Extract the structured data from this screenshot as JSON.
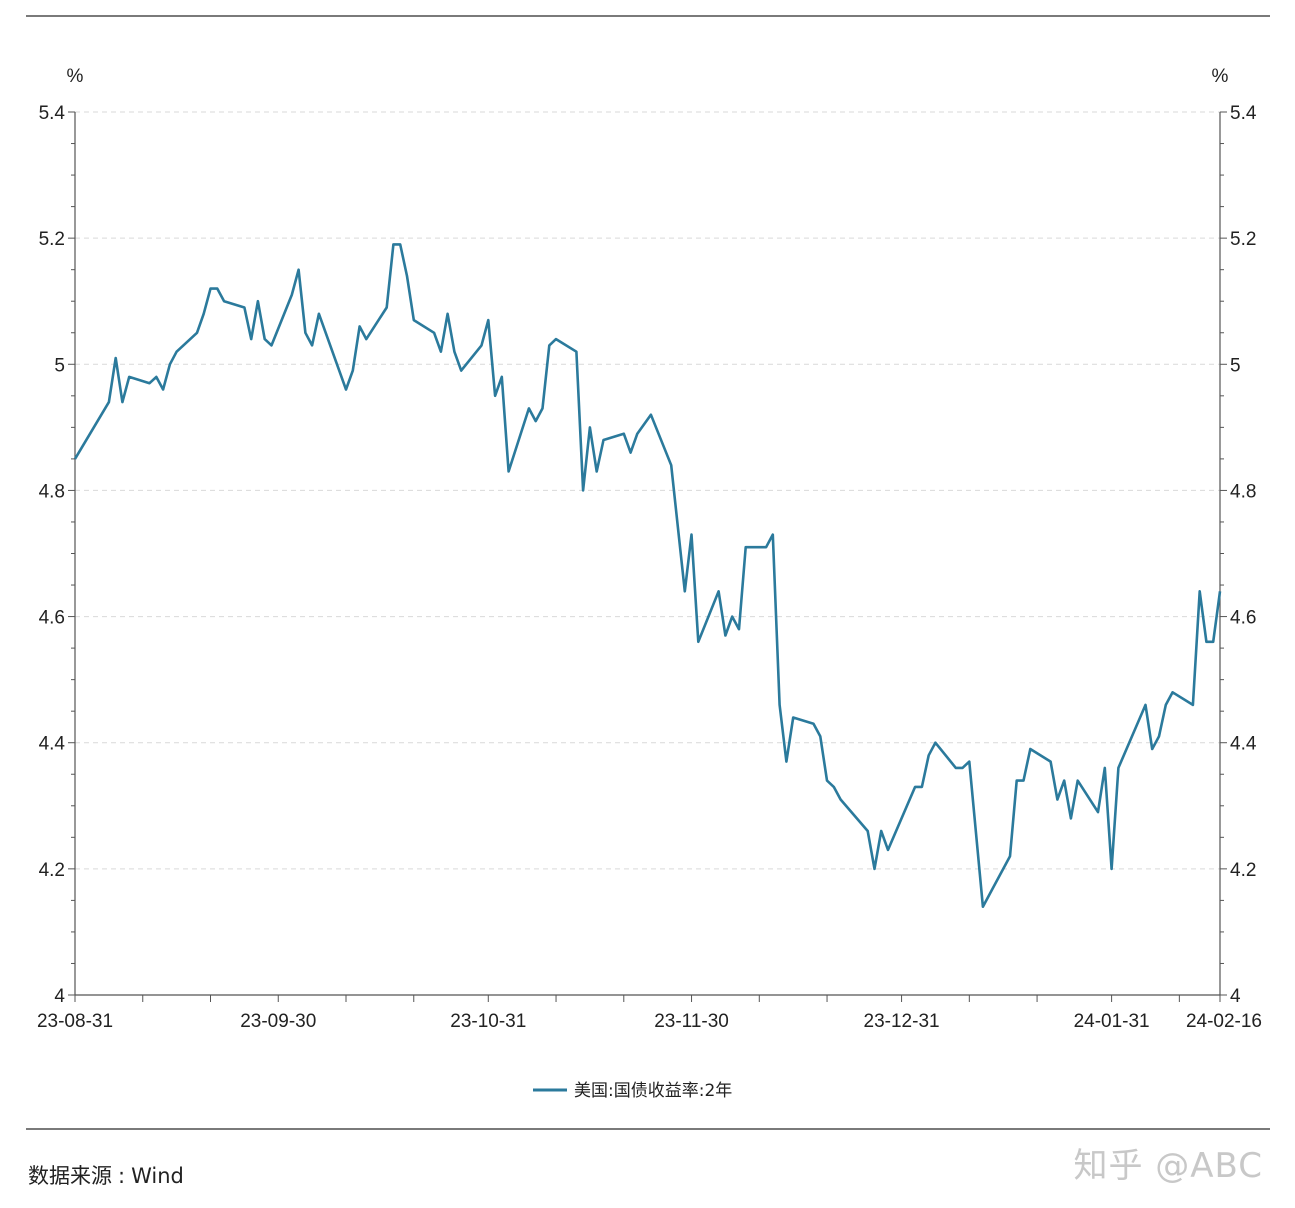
{
  "source": {
    "label": "数据来源",
    "separator": ":",
    "value": "Wind"
  },
  "watermark": "知乎 @ABC",
  "colors": {
    "line": "#2b7a9c",
    "grid": "#d9d9d9",
    "axis": "#555555"
  },
  "chart_data": {
    "type": "line",
    "title": "",
    "left_unit": "%",
    "right_unit": "%",
    "ylim": [
      4,
      5.4
    ],
    "yticks": [
      4,
      4.2,
      4.4,
      4.6,
      4.8,
      5,
      5.2,
      5.4
    ],
    "ytick_labels": [
      "4",
      "4.2",
      "4.4",
      "4.6",
      "4.8",
      "5",
      "5.2",
      "5.4"
    ],
    "xlim": [
      "2023-08-31",
      "2024-02-16"
    ],
    "x_minor_ticks": [
      "2023-08-31",
      "2023-09-10",
      "2023-09-20",
      "2023-09-30",
      "2023-10-10",
      "2023-10-20",
      "2023-10-31",
      "2023-11-10",
      "2023-11-20",
      "2023-11-30",
      "2023-12-10",
      "2023-12-20",
      "2023-12-31",
      "2024-01-10",
      "2024-01-20",
      "2024-01-31",
      "2024-02-10",
      "2024-02-16"
    ],
    "xtick_labels": [
      {
        "date": "2023-08-31",
        "label": "23-08-31"
      },
      {
        "date": "2023-09-30",
        "label": "23-09-30"
      },
      {
        "date": "2023-10-31",
        "label": "23-10-31"
      },
      {
        "date": "2023-11-30",
        "label": "23-11-30"
      },
      {
        "date": "2023-12-31",
        "label": "23-12-31"
      },
      {
        "date": "2024-01-31",
        "label": "24-01-31"
      },
      {
        "date": "2024-02-16",
        "label": "24-02-16"
      }
    ],
    "grid": "horizontal dashed",
    "legend_position": "bottom-center",
    "series": [
      {
        "name": "美国:国债收益率:2年",
        "points": [
          [
            "2023-08-31",
            4.85
          ],
          [
            "2023-09-05",
            4.94
          ],
          [
            "2023-09-06",
            5.01
          ],
          [
            "2023-09-07",
            4.94
          ],
          [
            "2023-09-08",
            4.98
          ],
          [
            "2023-09-11",
            4.97
          ],
          [
            "2023-09-12",
            4.98
          ],
          [
            "2023-09-13",
            4.96
          ],
          [
            "2023-09-14",
            5.0
          ],
          [
            "2023-09-15",
            5.02
          ],
          [
            "2023-09-18",
            5.05
          ],
          [
            "2023-09-19",
            5.08
          ],
          [
            "2023-09-20",
            5.12
          ],
          [
            "2023-09-21",
            5.12
          ],
          [
            "2023-09-22",
            5.1
          ],
          [
            "2023-09-25",
            5.09
          ],
          [
            "2023-09-26",
            5.04
          ],
          [
            "2023-09-27",
            5.1
          ],
          [
            "2023-09-28",
            5.04
          ],
          [
            "2023-09-29",
            5.03
          ],
          [
            "2023-10-02",
            5.11
          ],
          [
            "2023-10-03",
            5.15
          ],
          [
            "2023-10-04",
            5.05
          ],
          [
            "2023-10-05",
            5.03
          ],
          [
            "2023-10-06",
            5.08
          ],
          [
            "2023-10-10",
            4.96
          ],
          [
            "2023-10-11",
            4.99
          ],
          [
            "2023-10-12",
            5.06
          ],
          [
            "2023-10-13",
            5.04
          ],
          [
            "2023-10-16",
            5.09
          ],
          [
            "2023-10-17",
            5.19
          ],
          [
            "2023-10-18",
            5.19
          ],
          [
            "2023-10-19",
            5.14
          ],
          [
            "2023-10-20",
            5.07
          ],
          [
            "2023-10-23",
            5.05
          ],
          [
            "2023-10-24",
            5.02
          ],
          [
            "2023-10-25",
            5.08
          ],
          [
            "2023-10-26",
            5.02
          ],
          [
            "2023-10-27",
            4.99
          ],
          [
            "2023-10-30",
            5.03
          ],
          [
            "2023-10-31",
            5.07
          ],
          [
            "2023-11-01",
            4.95
          ],
          [
            "2023-11-02",
            4.98
          ],
          [
            "2023-11-03",
            4.83
          ],
          [
            "2023-11-06",
            4.93
          ],
          [
            "2023-11-07",
            4.91
          ],
          [
            "2023-11-08",
            4.93
          ],
          [
            "2023-11-09",
            5.03
          ],
          [
            "2023-11-10",
            5.04
          ],
          [
            "2023-11-13",
            5.02
          ],
          [
            "2023-11-14",
            4.8
          ],
          [
            "2023-11-15",
            4.9
          ],
          [
            "2023-11-16",
            4.83
          ],
          [
            "2023-11-17",
            4.88
          ],
          [
            "2023-11-20",
            4.89
          ],
          [
            "2023-11-21",
            4.86
          ],
          [
            "2023-11-22",
            4.89
          ],
          [
            "2023-11-24",
            4.92
          ],
          [
            "2023-11-27",
            4.84
          ],
          [
            "2023-11-28",
            4.74
          ],
          [
            "2023-11-29",
            4.64
          ],
          [
            "2023-11-30",
            4.73
          ],
          [
            "2023-12-01",
            4.56
          ],
          [
            "2023-12-04",
            4.64
          ],
          [
            "2023-12-05",
            4.57
          ],
          [
            "2023-12-06",
            4.6
          ],
          [
            "2023-12-07",
            4.58
          ],
          [
            "2023-12-08",
            4.71
          ],
          [
            "2023-12-11",
            4.71
          ],
          [
            "2023-12-12",
            4.73
          ],
          [
            "2023-12-13",
            4.46
          ],
          [
            "2023-12-14",
            4.37
          ],
          [
            "2023-12-15",
            4.44
          ],
          [
            "2023-12-18",
            4.43
          ],
          [
            "2023-12-19",
            4.41
          ],
          [
            "2023-12-20",
            4.34
          ],
          [
            "2023-12-21",
            4.33
          ],
          [
            "2023-12-22",
            4.31
          ],
          [
            "2023-12-26",
            4.26
          ],
          [
            "2023-12-27",
            4.2
          ],
          [
            "2023-12-28",
            4.26
          ],
          [
            "2023-12-29",
            4.23
          ],
          [
            "2024-01-02",
            4.33
          ],
          [
            "2024-01-03",
            4.33
          ],
          [
            "2024-01-04",
            4.38
          ],
          [
            "2024-01-05",
            4.4
          ],
          [
            "2024-01-08",
            4.36
          ],
          [
            "2024-01-09",
            4.36
          ],
          [
            "2024-01-10",
            4.37
          ],
          [
            "2024-01-12",
            4.14
          ],
          [
            "2024-01-16",
            4.22
          ],
          [
            "2024-01-17",
            4.34
          ],
          [
            "2024-01-18",
            4.34
          ],
          [
            "2024-01-19",
            4.39
          ],
          [
            "2024-01-22",
            4.37
          ],
          [
            "2024-01-23",
            4.31
          ],
          [
            "2024-01-24",
            4.34
          ],
          [
            "2024-01-25",
            4.28
          ],
          [
            "2024-01-26",
            4.34
          ],
          [
            "2024-01-29",
            4.29
          ],
          [
            "2024-01-30",
            4.36
          ],
          [
            "2024-01-31",
            4.2
          ],
          [
            "2024-02-01",
            4.36
          ],
          [
            "2024-02-05",
            4.46
          ],
          [
            "2024-02-06",
            4.39
          ],
          [
            "2024-02-07",
            4.41
          ],
          [
            "2024-02-08",
            4.46
          ],
          [
            "2024-02-09",
            4.48
          ],
          [
            "2024-02-12",
            4.46
          ],
          [
            "2024-02-13",
            4.64
          ],
          [
            "2024-02-14",
            4.56
          ],
          [
            "2024-02-15",
            4.56
          ],
          [
            "2024-02-16",
            4.64
          ]
        ]
      }
    ]
  }
}
